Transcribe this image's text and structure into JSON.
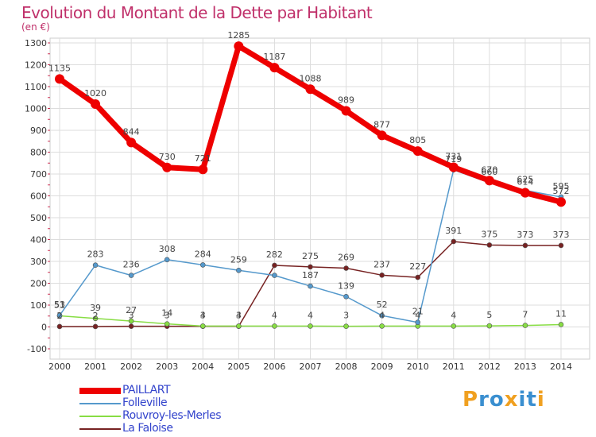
{
  "chart_data": {
    "type": "line",
    "title": "Evolution du Montant de la Dette par Habitant",
    "subtitle": "(en €)",
    "xlabel": "",
    "ylabel": "",
    "categories": [
      "2000",
      "2001",
      "2002",
      "2003",
      "2004",
      "2005",
      "2006",
      "2007",
      "2008",
      "2009",
      "2010",
      "2011",
      "2012",
      "2013",
      "2014"
    ],
    "ylim": [
      -100,
      1300
    ],
    "yticks": [
      -100,
      0,
      100,
      200,
      300,
      400,
      500,
      600,
      700,
      800,
      900,
      1000,
      1100,
      1200,
      1300
    ],
    "grid": true,
    "legend_position": "bottom-left",
    "series": [
      {
        "name": "PAILLART",
        "color": "#ee0000",
        "values": [
          1135,
          1020,
          844,
          730,
          721,
          1285,
          1187,
          1088,
          989,
          877,
          805,
          731,
          670,
          614,
          572
        ],
        "labels": [
          "1135",
          "1020",
          "844",
          "730",
          "721",
          "1285",
          "1187",
          "1088",
          "989",
          "877",
          "805",
          "731",
          "670",
          "614",
          "572"
        ]
      },
      {
        "name": "Folleville",
        "color": "#5599cc",
        "values": [
          53,
          283,
          236,
          308,
          284,
          259,
          236,
          187,
          139,
          52,
          21,
          719,
          660,
          625,
          595
        ],
        "labels": [
          "53",
          "283",
          "236",
          "308",
          "284",
          "259",
          "",
          "187",
          "139",
          "52",
          "21",
          "719",
          "660",
          "625",
          "595"
        ]
      },
      {
        "name": "Rouvroy-les-Merles",
        "color": "#88dd44",
        "values": [
          51,
          39,
          27,
          14,
          4,
          4,
          4,
          4,
          3,
          4,
          4,
          4,
          5,
          7,
          11
        ],
        "labels": [
          "51",
          "39",
          "27",
          "14",
          "4",
          "4",
          "4",
          "4",
          "3",
          "4",
          "4",
          "4",
          "5",
          "7",
          "11"
        ]
      },
      {
        "name": "La Faloise",
        "color": "#772222",
        "values": [
          2,
          2,
          3,
          3,
          3,
          3,
          282,
          275,
          269,
          237,
          227,
          391,
          375,
          373,
          373
        ],
        "labels": [
          "2",
          "2",
          "3",
          "3",
          "3",
          "3",
          "282",
          "275",
          "269",
          "237",
          "227",
          "391",
          "375",
          "373",
          "373"
        ]
      }
    ]
  },
  "logo": {
    "text": "Proxiti",
    "letters": [
      "P",
      "r",
      "o",
      "x",
      "i",
      "t",
      "i"
    ],
    "colors": [
      "#f0a020",
      "#3a8fd0",
      "#3a8fd0",
      "#f0a020",
      "#3a8fd0",
      "#3a8fd0",
      "#f0a020"
    ]
  }
}
